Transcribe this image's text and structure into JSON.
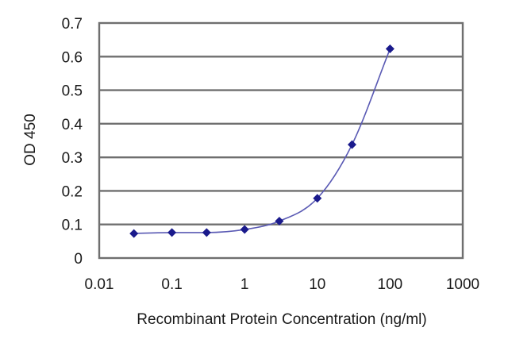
{
  "chart_data": {
    "type": "scatter",
    "title": "",
    "xlabel": "Recombinant Protein Concentration (ng/ml)",
    "ylabel": "OD 450",
    "x_scale": "log",
    "xlim": [
      0.01,
      1000
    ],
    "ylim": [
      0,
      0.7
    ],
    "x_tick_labels": [
      "0.01",
      "0.1",
      "1",
      "10",
      "100",
      "1000"
    ],
    "x_tick_values": [
      0.01,
      0.1,
      1,
      10,
      100,
      1000
    ],
    "y_tick_labels": [
      "0",
      "0.1",
      "0.2",
      "0.3",
      "0.4",
      "0.5",
      "0.6",
      "0.7"
    ],
    "y_tick_values": [
      0,
      0.1,
      0.2,
      0.3,
      0.4,
      0.5,
      0.6,
      0.7
    ],
    "grid": "horizontal",
    "legend": "none",
    "marker": "diamond",
    "fitted_curve": true,
    "series": [
      {
        "x": [
          0.03,
          0.1,
          0.3,
          1,
          3,
          10,
          30,
          100
        ],
        "y": [
          0.073,
          0.076,
          0.076,
          0.085,
          0.11,
          0.178,
          0.338,
          0.623
        ]
      }
    ],
    "colors": {
      "series": "#1a1a8c",
      "curve": "#5a5ab4",
      "grid": "#6f6f6f"
    }
  }
}
